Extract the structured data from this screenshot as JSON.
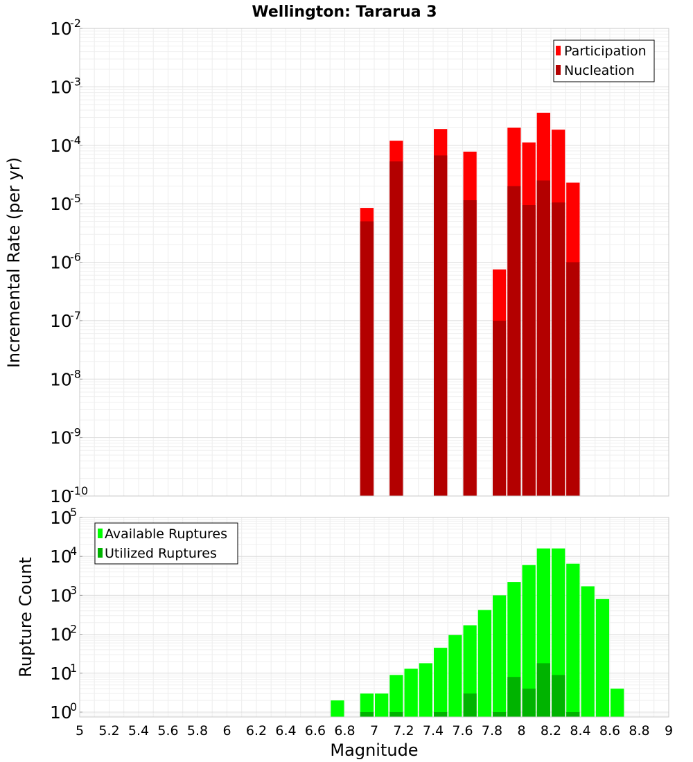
{
  "title": "Wellington: Tararua 3",
  "chart_data": [
    {
      "type": "bar",
      "ylabel": "Incremental Rate (per yr)",
      "xlabel": "",
      "yscale": "log",
      "xlim": [
        5,
        9
      ],
      "ylim": [
        1e-10,
        0.01
      ],
      "ytick_mantissa": "10",
      "ytick_exponents": [
        "-10",
        "-9",
        "-8",
        "-7",
        "-6",
        "-5",
        "-4",
        "-3",
        "-2"
      ],
      "grid": true,
      "legend": "top-right",
      "bin_width": 0.1,
      "series": [
        {
          "name": "Participation",
          "color": "#ff0000",
          "x": [
            6.95,
            7.15,
            7.45,
            7.65,
            7.85,
            7.95,
            8.05,
            8.15,
            8.25,
            8.35
          ],
          "values": [
            8.5e-06,
            0.00012,
            0.00019,
            7.8e-05,
            7.5e-07,
            0.0002,
            0.000112,
            0.00036,
            0.000185,
            2.3e-05
          ]
        },
        {
          "name": "Nucleation",
          "color": "#b30000",
          "x": [
            6.95,
            7.15,
            7.45,
            7.65,
            7.85,
            7.95,
            8.05,
            8.15,
            8.25,
            8.35
          ],
          "values": [
            5e-06,
            5.3e-05,
            6.7e-05,
            1.15e-05,
            1e-07,
            2e-05,
            9.5e-06,
            2.5e-05,
            1.05e-05,
            1e-06
          ]
        }
      ]
    },
    {
      "type": "bar",
      "ylabel": "Rupture Count",
      "xlabel": "Magnitude",
      "yscale": "log",
      "xlim": [
        5,
        9
      ],
      "ylim": [
        0.75,
        100000
      ],
      "ytick_mantissa": "10",
      "ytick_exponents": [
        "0",
        "1",
        "2",
        "3",
        "4",
        "5"
      ],
      "xticks": [
        "5",
        "5.2",
        "5.4",
        "5.6",
        "5.8",
        "6",
        "6.2",
        "6.4",
        "6.6",
        "6.8",
        "7",
        "7.2",
        "7.4",
        "7.6",
        "7.8",
        "8",
        "8.2",
        "8.4",
        "8.6",
        "8.8",
        "9"
      ],
      "grid": true,
      "legend": "top-left",
      "bin_width": 0.1,
      "series": [
        {
          "name": "Available Ruptures",
          "color": "#00ff00",
          "x": [
            6.75,
            6.95,
            7.05,
            7.15,
            7.25,
            7.35,
            7.45,
            7.55,
            7.65,
            7.75,
            7.85,
            7.95,
            8.05,
            8.15,
            8.25,
            8.35,
            8.45,
            8.55,
            8.65
          ],
          "values": [
            2,
            3,
            3,
            9,
            13,
            18,
            45,
            95,
            170,
            420,
            1000,
            2200,
            6000,
            16000,
            16000,
            6500,
            1700,
            800,
            4
          ]
        },
        {
          "name": "Utilized Ruptures",
          "color": "#00b300",
          "x": [
            6.95,
            7.15,
            7.45,
            7.65,
            7.85,
            7.95,
            8.05,
            8.15,
            8.25,
            8.35
          ],
          "values": [
            1,
            1,
            1,
            3,
            1,
            8,
            4,
            18,
            9,
            1
          ]
        }
      ]
    }
  ]
}
